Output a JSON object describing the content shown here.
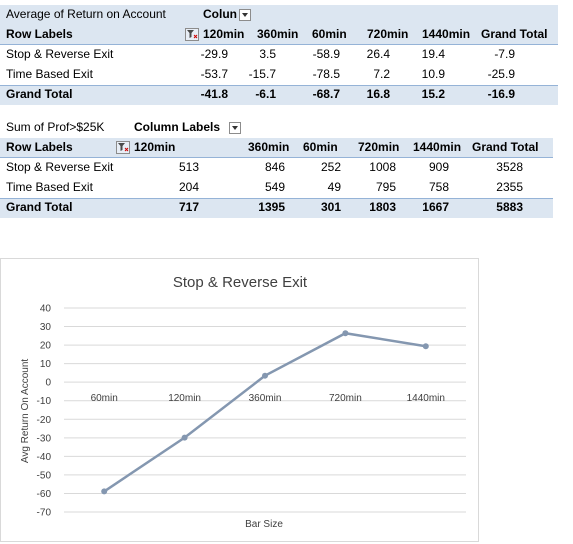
{
  "pivot1": {
    "title": "Average of Return on Account",
    "column_labels": "Colun",
    "row_labels": "Row Labels",
    "columns": [
      "120min",
      "360min",
      "60min",
      "720min",
      "1440min",
      "Grand Total"
    ],
    "rows": [
      {
        "label": "Stop & Reverse Exit",
        "values": [
          "-29.9",
          "3.5",
          "-58.9",
          "26.4",
          "19.4",
          "-7.9"
        ]
      },
      {
        "label": "Time Based Exit",
        "values": [
          "-53.7",
          "-15.7",
          "-78.5",
          "7.2",
          "10.9",
          "-25.9"
        ]
      }
    ],
    "total": {
      "label": "Grand Total",
      "values": [
        "-41.8",
        "-6.1",
        "-68.7",
        "16.8",
        "15.2",
        "-16.9"
      ]
    }
  },
  "pivot2": {
    "title": "Sum of Prof>$25K",
    "column_labels": "Column Labels",
    "row_labels": "Row Labels",
    "columns": [
      "120min",
      "360min",
      "60min",
      "720min",
      "1440min",
      "Grand Total"
    ],
    "rows": [
      {
        "label": "Stop & Reverse Exit",
        "values": [
          "513",
          "846",
          "252",
          "1008",
          "909",
          "3528"
        ]
      },
      {
        "label": "Time Based Exit",
        "values": [
          "204",
          "549",
          "49",
          "795",
          "758",
          "2355"
        ]
      }
    ],
    "total": {
      "label": "Grand Total",
      "values": [
        "717",
        "1395",
        "301",
        "1803",
        "1667",
        "5883"
      ]
    }
  },
  "chart_data": {
    "type": "line",
    "title": "Stop & Reverse Exit",
    "xlabel": "Bar Size",
    "ylabel": "Avg Return On Account",
    "categories": [
      "60min",
      "120min",
      "360min",
      "720min",
      "1440min"
    ],
    "series": [
      {
        "values": [
          -58.9,
          -29.9,
          3.5,
          26.4,
          19.4
        ],
        "color": "#8497b0"
      }
    ],
    "ylim": [
      -70,
      40
    ],
    "yticks": [
      40,
      30,
      20,
      10,
      0,
      -10,
      -20,
      -30,
      -40,
      -50,
      -60,
      -70
    ],
    "grid": true,
    "legend": "none"
  }
}
